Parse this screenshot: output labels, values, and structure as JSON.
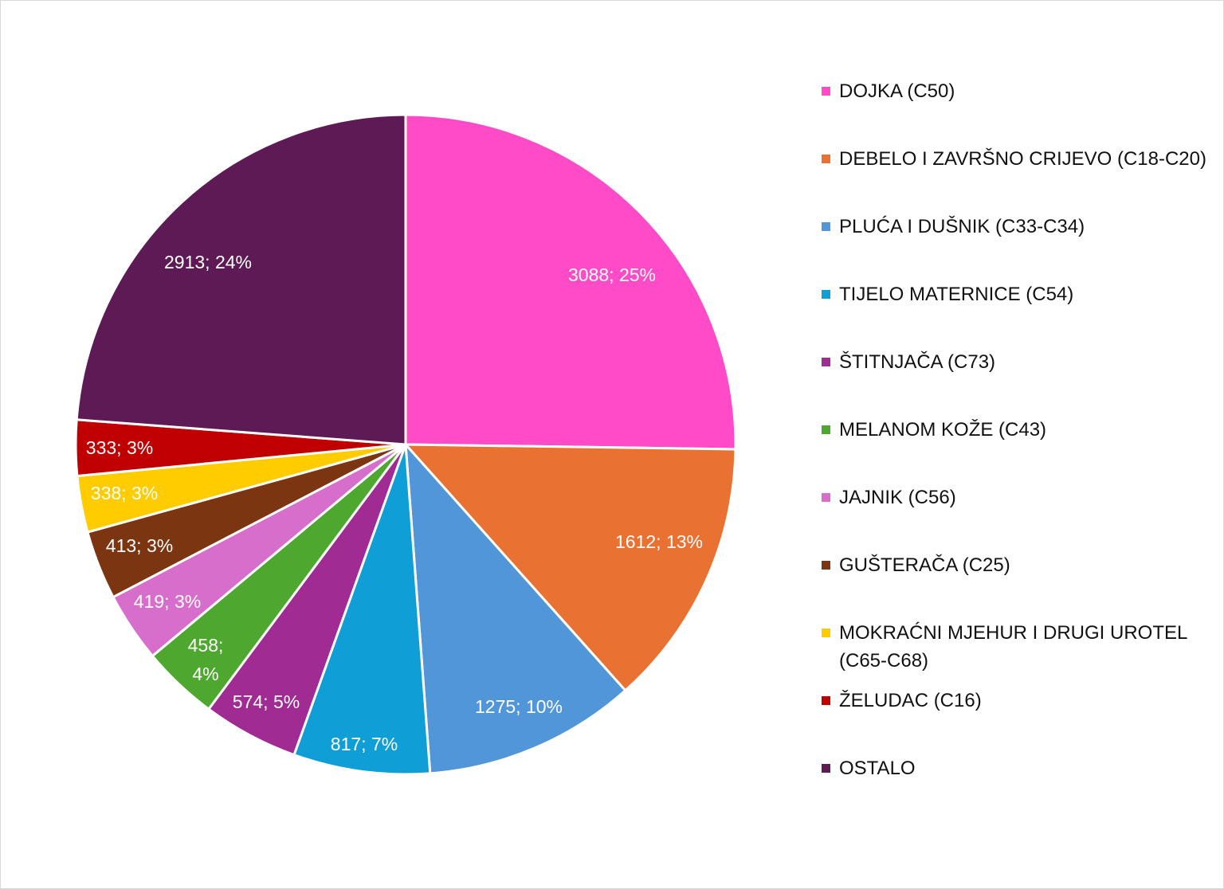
{
  "chart_data": {
    "type": "pie",
    "title": "",
    "legend_position": "right",
    "start_angle": "12 o'clock, clockwise",
    "slices": [
      {
        "name": "DOJKA (C50)",
        "value": 3088,
        "percent": "25%",
        "label": "3088; 25%",
        "color": "#FF4BC8"
      },
      {
        "name": "DEBELO I ZAVRŠNO CRIJEVO (C18-C20)",
        "value": 1612,
        "percent": "13%",
        "label": "1612; 13%",
        "color": "#E97132"
      },
      {
        "name": "PLUĆA I DUŠNIK (C33-C34)",
        "value": 1275,
        "percent": "10%",
        "label": "1275; 10%",
        "color": "#5096D8"
      },
      {
        "name": "TIJELO MATERNICE (C54)",
        "value": 817,
        "percent": "7%",
        "label": "817; 7%",
        "color": "#0F9ED5"
      },
      {
        "name": "ŠTITNJAČA (C73)",
        "value": 574,
        "percent": "5%",
        "label": "574; 5%",
        "color": "#A02B93"
      },
      {
        "name": "MELANOM KOŽE (C43)",
        "value": 458,
        "percent": "4%",
        "label": "458; 4%",
        "color": "#4EA72E"
      },
      {
        "name": "JAJNIK (C56)",
        "value": 419,
        "percent": "3%",
        "label": "419; 3%",
        "color": "#D86ECC"
      },
      {
        "name": "GUŠTERAČA (C25)",
        "value": 413,
        "percent": "3%",
        "label": "413; 3%",
        "color": "#7B3510"
      },
      {
        "name": "MOKRAĆNI MJEHUR I DRUGI UROTEL (C65-C68)",
        "value": 338,
        "percent": "3%",
        "label": "338; 3%",
        "color": "#FFCC00"
      },
      {
        "name": "ŽELUDAC (C16)",
        "value": 333,
        "percent": "3%",
        "label": "333; 3%",
        "color": "#C00000"
      },
      {
        "name": "OSTALO",
        "value": 2913,
        "percent": "24%",
        "label": "2913; 24%",
        "color": "#5E1A54"
      }
    ]
  }
}
